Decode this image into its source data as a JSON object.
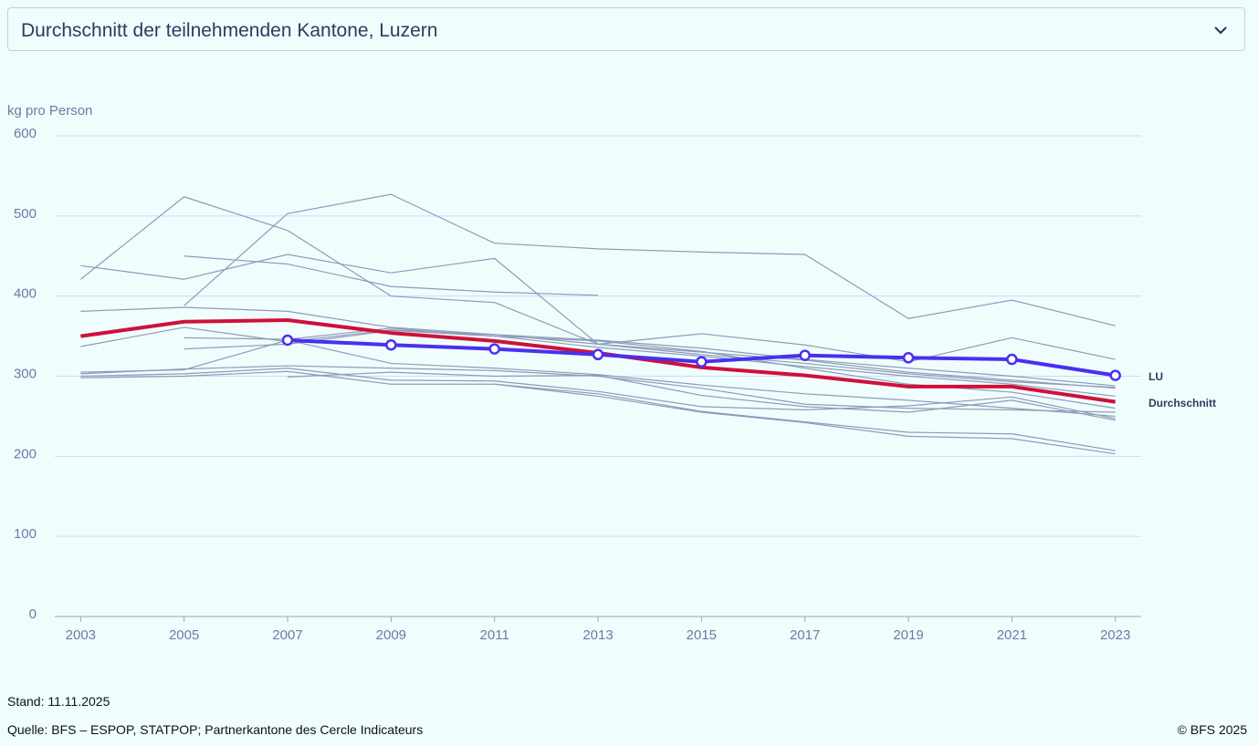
{
  "selector": {
    "label": "Durchschnitt der teilnehmenden Kantone, Luzern"
  },
  "chart_data": {
    "type": "line",
    "y_label": "kg pro Person",
    "x": [
      2003,
      2005,
      2007,
      2009,
      2011,
      2013,
      2015,
      2017,
      2019,
      2021,
      2023
    ],
    "xlim": [
      2002.5,
      2023.5
    ],
    "xticks": [
      2003,
      2005,
      2007,
      2009,
      2011,
      2013,
      2015,
      2017,
      2019,
      2021,
      2023
    ],
    "ylim": [
      0,
      600
    ],
    "yticks": [
      0,
      100,
      200,
      300,
      400,
      500,
      600
    ],
    "grid": true,
    "series": [
      {
        "color": "#8e9ab8",
        "values": [
          421,
          524,
          482,
          400,
          392,
          340,
          330,
          320,
          305,
          295,
          285
        ]
      },
      {
        "color": "#8e9ab8",
        "values": [
          null,
          388,
          503,
          527,
          466,
          459,
          455,
          452,
          372,
          395,
          363
        ]
      },
      {
        "color": "#8e9ab8",
        "values": [
          438,
          421,
          452,
          429,
          447,
          340,
          353,
          339,
          318,
          348,
          321
        ]
      },
      {
        "color": "#8e9ab8",
        "values": [
          null,
          450,
          440,
          412,
          405,
          401,
          null,
          null,
          null,
          null,
          null
        ]
      },
      {
        "color": "#8e9ab8",
        "values": [
          381,
          386,
          381,
          361,
          352,
          345,
          335,
          321,
          310,
          300,
          288
        ]
      },
      {
        "color": "#8e9ab8",
        "values": [
          337,
          361,
          343,
          358,
          352,
          340,
          327,
          316,
          303,
          293,
          286
        ]
      },
      {
        "color": "#8e9ab8",
        "values": [
          null,
          348,
          346,
          360,
          350,
          336,
          325,
          312,
          300,
          290,
          275
        ]
      },
      {
        "color": "#8e9ab8",
        "values": [
          null,
          334,
          340,
          357,
          350,
          344,
          331,
          310,
          290,
          280,
          260
        ]
      },
      {
        "color": "#8e9ab8",
        "values": [
          305,
          308,
          345,
          316,
          310,
          302,
          289,
          278,
          270,
          260,
          250
        ]
      },
      {
        "color": "#8e9ab8",
        "values": [
          303,
          309,
          313,
          310,
          307,
          300,
          285,
          265,
          260,
          258,
          255
        ]
      },
      {
        "color": "#8e9ab8",
        "values": [
          300,
          303,
          310,
          295,
          294,
          281,
          262,
          258,
          263,
          274,
          247
        ]
      },
      {
        "color": "#8e9ab8",
        "values": [
          298,
          300,
          306,
          290,
          290,
          278,
          256,
          243,
          230,
          228,
          207
        ]
      },
      {
        "color": "#8e9ab8",
        "values": [
          null,
          null,
          299,
          305,
          300,
          301,
          276,
          262,
          255,
          270,
          245
        ]
      },
      {
        "color": "#8e9ab8",
        "values": [
          null,
          null,
          null,
          null,
          290,
          275,
          255,
          242,
          225,
          222,
          203
        ]
      },
      {
        "name": "Durchschnitt",
        "color": "#d0103a",
        "values": [
          350,
          368,
          370,
          354,
          344,
          329,
          311,
          301,
          287,
          287,
          268
        ]
      },
      {
        "name": "LU",
        "color": "#4a2ff0",
        "markers": true,
        "values": [
          null,
          null,
          345,
          339,
          334,
          327,
          318,
          326,
          323,
          321,
          301
        ]
      }
    ]
  },
  "footer": {
    "date": "Stand: 11.11.2025",
    "source": "Quelle: BFS – ESPOP, STATPOP; Partnerkantone des Cercle Indicateurs",
    "copyright": "© BFS 2025"
  }
}
